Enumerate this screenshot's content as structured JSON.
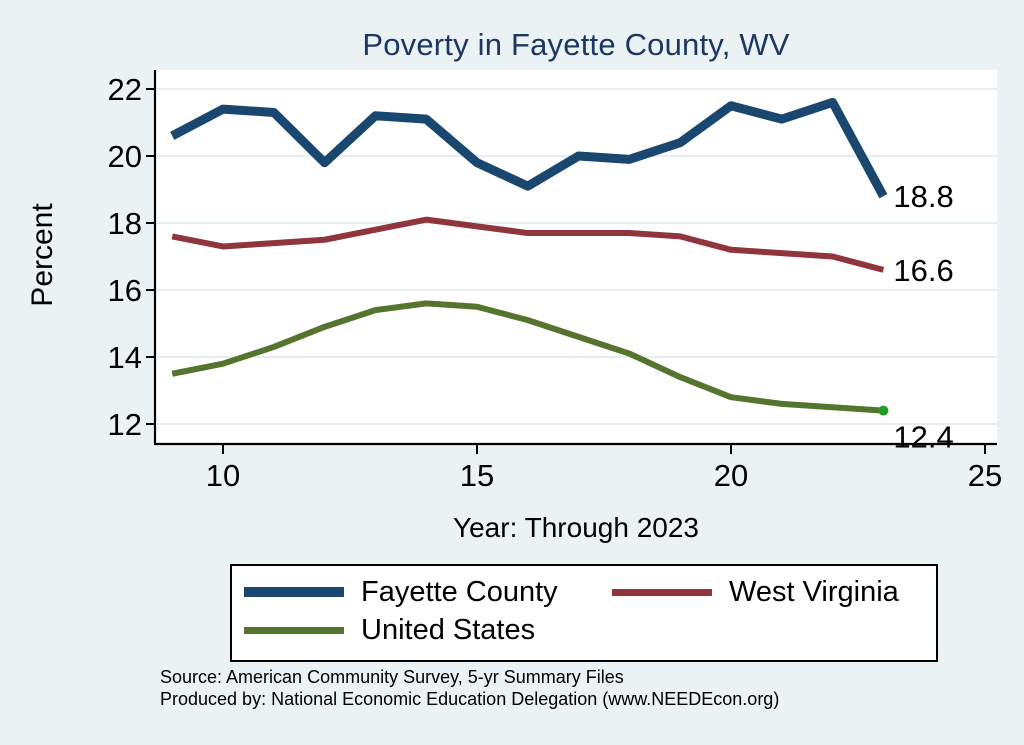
{
  "page": {
    "background_color": "#eaf2f3",
    "plot_background_color": "#ffffff",
    "gridline_color": "#e4edf1",
    "title_color": "#1c3760"
  },
  "chart_data": {
    "type": "line",
    "title": "Poverty in Fayette County, WV",
    "xlabel": "Year: Through 2023",
    "ylabel": "Percent",
    "x": [
      9,
      10,
      11,
      12,
      13,
      14,
      15,
      16,
      17,
      18,
      19,
      20,
      21,
      22,
      23
    ],
    "xticks": [
      10,
      15,
      20,
      25
    ],
    "yticks": [
      12,
      14,
      16,
      18,
      20,
      22
    ],
    "xlim": [
      8.7,
      25.3
    ],
    "ylim": [
      11.6,
      22.5
    ],
    "grid": "horizontal",
    "legend_position": "bottom",
    "series": [
      {
        "name": "Fayette County",
        "color": "#1a476f",
        "line_width": 9,
        "values": [
          20.6,
          21.4,
          21.3,
          19.8,
          21.2,
          21.1,
          19.8,
          19.1,
          20.0,
          19.9,
          20.4,
          21.5,
          21.1,
          21.6,
          18.8
        ],
        "end_label": "18.8"
      },
      {
        "name": "West Virginia",
        "color": "#90353b",
        "line_width": 6,
        "values": [
          17.6,
          17.3,
          17.4,
          17.5,
          17.8,
          18.1,
          17.9,
          17.7,
          17.7,
          17.7,
          17.6,
          17.2,
          17.1,
          17.0,
          16.6
        ],
        "end_label": "16.6"
      },
      {
        "name": "United States",
        "color": "#55752f",
        "line_width": 6,
        "values": [
          13.5,
          13.8,
          14.3,
          14.9,
          15.4,
          15.6,
          15.5,
          15.1,
          14.6,
          14.1,
          13.4,
          12.8,
          12.6,
          12.5,
          12.4
        ],
        "end_label": "12.4",
        "end_marker_color": "#1f9e1f"
      }
    ]
  },
  "footer": {
    "source_line": "Source: American Community Survey, 5-yr Summary Files",
    "produced_line": "Produced by: National Economic Education Delegation (www.NEEDEcon.org)"
  }
}
